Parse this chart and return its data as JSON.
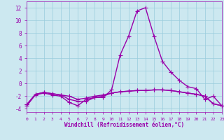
{
  "xlabel": "Windchill (Refroidissement éolien,°C)",
  "hours": [
    0,
    1,
    2,
    3,
    4,
    5,
    6,
    7,
    8,
    9,
    10,
    11,
    12,
    13,
    14,
    15,
    16,
    17,
    18,
    19,
    20,
    21,
    22,
    23
  ],
  "line1": [
    -3.5,
    -1.8,
    -1.5,
    -1.8,
    -2.0,
    -3.0,
    -3.5,
    -2.5,
    -2.2,
    -2.2,
    -1.0,
    4.5,
    7.5,
    11.5,
    12.0,
    7.5,
    3.5,
    1.8,
    0.5,
    -0.5,
    -0.8,
    -2.5,
    -2.0,
    -3.5
  ],
  "line2": [
    -3.3,
    -1.7,
    -1.4,
    -1.6,
    -1.8,
    -2.5,
    -2.8,
    -2.8,
    -2.2,
    -2.0,
    -1.5,
    -1.3,
    -1.2,
    -1.1,
    -1.1,
    -1.0,
    -1.0,
    -1.1,
    -1.3,
    -1.5,
    -1.7,
    -2.0,
    -3.2,
    -3.5
  ],
  "line3": [
    -3.3,
    -1.7,
    -1.4,
    -1.6,
    -1.8,
    -2.0,
    -2.5,
    -2.3,
    -2.0,
    -1.8,
    -1.5,
    -1.3,
    -1.2,
    -1.1,
    -1.1,
    -1.0,
    -1.0,
    -1.1,
    -1.3,
    -1.5,
    -1.7,
    -2.0,
    -3.2,
    -3.5
  ],
  "line_color": "#9900aa",
  "bg_color": "#cce8f0",
  "grid_color": "#99ccdd",
  "ylim": [
    -4.5,
    13.0
  ],
  "yticks": [
    -4,
    -2,
    0,
    2,
    4,
    6,
    8,
    10,
    12
  ],
  "marker": "+",
  "markersize": 4,
  "linewidth": 1.0
}
